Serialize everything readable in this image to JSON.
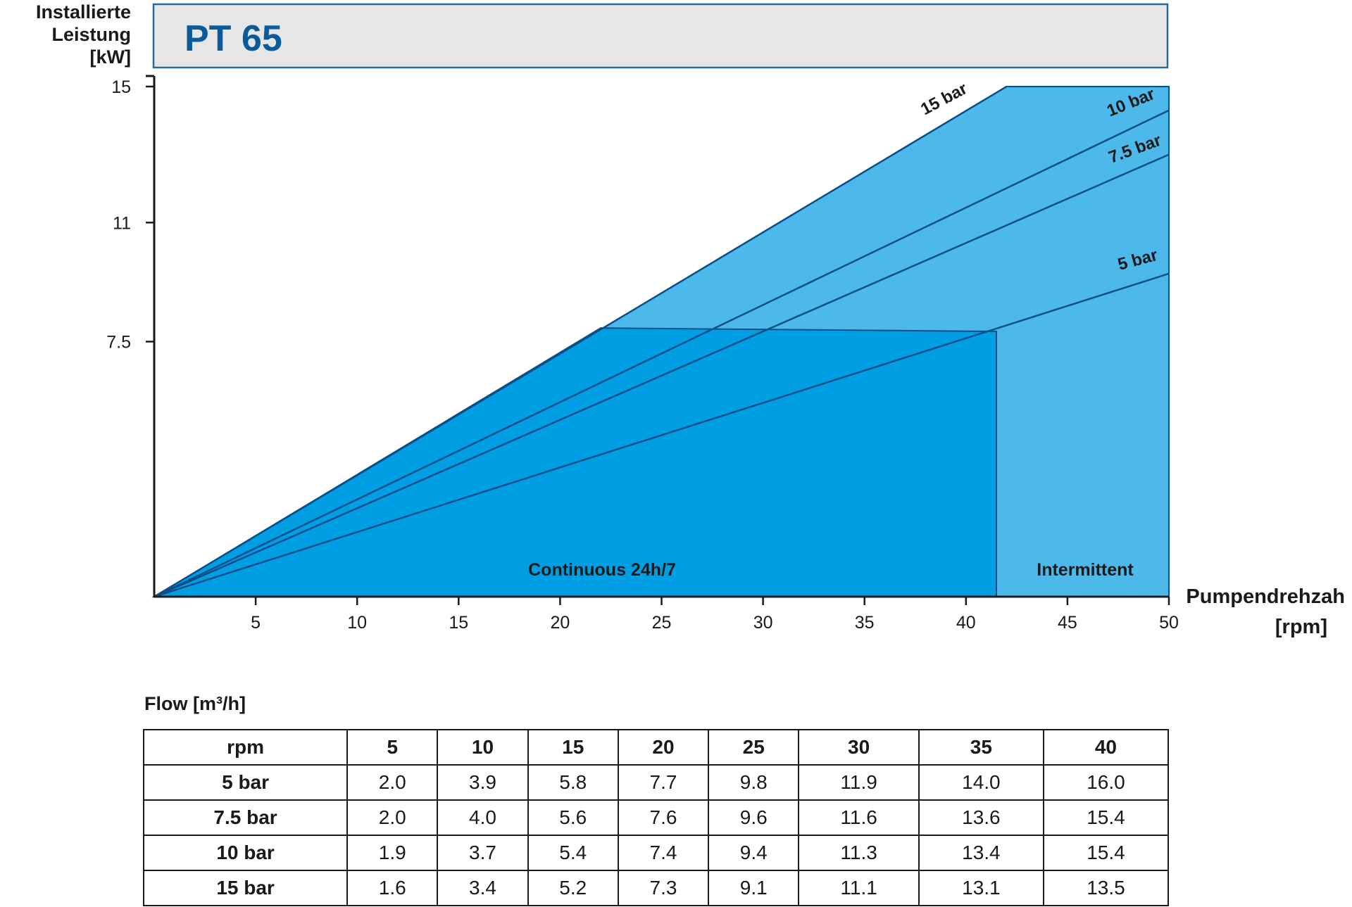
{
  "chart_data": {
    "type": "line",
    "title": "PT 65",
    "ylabel_lines": [
      "Installierte",
      "Leistung",
      "[kW]"
    ],
    "xlabel_lines": [
      "Pumpendrehzah",
      "[rpm]"
    ],
    "xlim": [
      0,
      50
    ],
    "ylim": [
      0,
      15
    ],
    "x_ticks": [
      5,
      10,
      15,
      20,
      25,
      30,
      35,
      40,
      45,
      50
    ],
    "y_ticks": [
      7.5,
      11,
      15
    ],
    "series": [
      {
        "name": "15 bar",
        "x": [
          0,
          42
        ],
        "y": [
          0,
          15
        ]
      },
      {
        "name": "10 bar",
        "x": [
          0,
          50
        ],
        "y": [
          0,
          14.3
        ]
      },
      {
        "name": "7.5 bar",
        "x": [
          0,
          50
        ],
        "y": [
          0,
          13
        ]
      },
      {
        "name": "5 bar",
        "x": [
          0,
          50
        ],
        "y": [
          0,
          9.5
        ]
      }
    ],
    "regions": [
      {
        "name": "Continuous 24h/7",
        "polygon": [
          [
            0,
            0
          ],
          [
            22,
            7.9
          ],
          [
            41.5,
            7.8
          ],
          [
            41.5,
            0
          ]
        ],
        "color": "#009fe3"
      },
      {
        "name": "Intermittent",
        "polygon": [
          [
            0,
            0
          ],
          [
            42,
            15
          ],
          [
            50,
            15
          ],
          [
            50,
            0
          ]
        ],
        "color": "#4db8ea"
      }
    ],
    "grid": false
  },
  "table": {
    "title": "Flow [m³/h]",
    "columns": [
      "rpm",
      "5",
      "10",
      "15",
      "20",
      "25",
      "30",
      "35",
      "40"
    ],
    "rows": [
      {
        "label": "5 bar",
        "values": [
          "2.0",
          "3.9",
          "5.8",
          "7.7",
          "9.8",
          "11.9",
          "14.0",
          "16.0"
        ]
      },
      {
        "label": "7.5 bar",
        "values": [
          "2.0",
          "4.0",
          "5.6",
          "7.6",
          "9.6",
          "11.6",
          "13.6",
          "15.4"
        ]
      },
      {
        "label": "10 bar",
        "values": [
          "1.9",
          "3.7",
          "5.4",
          "7.4",
          "9.4",
          "11.3",
          "13.4",
          "15.4"
        ]
      },
      {
        "label": "15 bar",
        "values": [
          "1.6",
          "3.4",
          "5.2",
          "7.3",
          "9.1",
          "11.1",
          "13.1",
          "13.5"
        ]
      }
    ]
  },
  "colors": {
    "continuous": "#009fe3",
    "intermittent": "#4db8ea",
    "lines": "#0b4f8a",
    "title": "#0b5a9a",
    "title_box_fill": "#e6e6e6",
    "title_box_border": "#2a6a9a"
  }
}
